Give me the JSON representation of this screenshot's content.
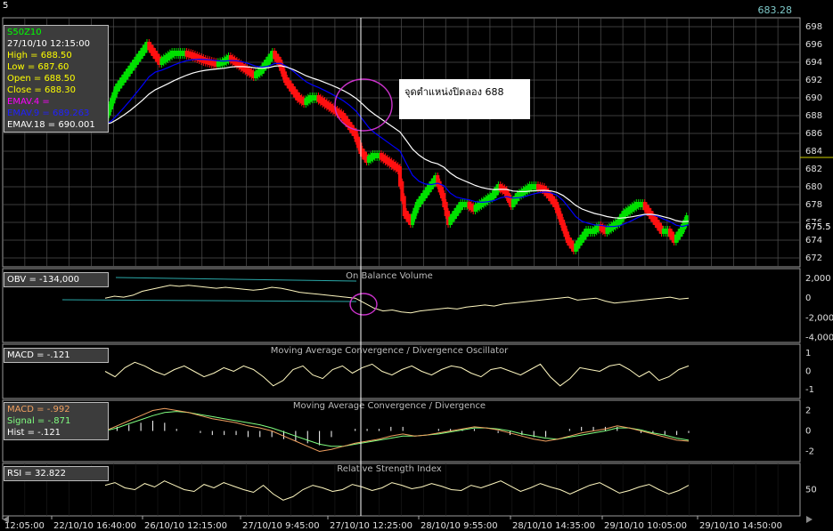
{
  "window": {
    "corner_label": "5",
    "last_price": "683.28"
  },
  "price_panel": {
    "symbol": "S50Z10",
    "datetime": "27/10/10 12:15:00",
    "high": "High  = 688.50",
    "low": "Low   = 687.60",
    "open": "Open = 688.50",
    "close": "Close = 688.30",
    "emav4": "EMAV.4 =",
    "emav9": "EMAV.9 = 689.263",
    "emav18": "EMAV.18 = 690.001",
    "y_ticks": [
      "698",
      "696",
      "694",
      "692",
      "690",
      "688",
      "686",
      "684",
      "682",
      "680",
      "678",
      "676",
      "674",
      "672"
    ],
    "last_label": "675.5",
    "annotation": "จุดตำแหน่งปิดลอง 688"
  },
  "obv_panel": {
    "title": "On Balance Volume",
    "value_label": "OBV = -134,000",
    "y_ticks": [
      "2,000",
      "0",
      "-2,000",
      "-4,000"
    ]
  },
  "osc_panel": {
    "title": "Moving Average Convergence / Divergence Oscillator",
    "value_label": "MACD = -.121",
    "y_ticks": [
      "1",
      "0",
      "-1"
    ]
  },
  "macd_panel": {
    "title": "Moving Average Convergence / Divergence",
    "macd": "MACD = -.992",
    "signal": "Signal = -.871",
    "hist": "Hist = -.121",
    "y_ticks": [
      "2",
      "0",
      "-2"
    ]
  },
  "rsi_panel": {
    "title": "Relative Strength Index",
    "value_label": "RSI = 32.822",
    "y_ticks": [
      "50"
    ]
  },
  "x_axis": {
    "labels": [
      "12:05:00",
      "22/10/10 16:40:00",
      "26/10/10 12:15:00",
      "27/10/10 9:45:00",
      "27/10/10 12:25:00",
      "28/10/10 9:55:00",
      "28/10/10 14:35:00",
      "29/10/10 10:05:00",
      "29/10/10 14:50:00"
    ]
  },
  "colors": {
    "up": "#00e000",
    "down": "#ff1010",
    "ema4": "#ff00ff",
    "ema9": "#0000ff",
    "ema18": "#ffffff",
    "osc": "#fff8c0",
    "obv": "#fff8c0",
    "grid": "#505050",
    "cursor": "#ffffff",
    "marker": "#cc33cc",
    "signal": "#f0a060",
    "macd_line": "#80ff80",
    "hist": "#ffffff"
  },
  "chart_data": [
    {
      "type": "candlestick",
      "title": "S50Z10",
      "ylim": [
        671,
        699
      ],
      "close_path": [
        687,
        689,
        691,
        692,
        693,
        694,
        695,
        696,
        695,
        694,
        694.5,
        695,
        695,
        695,
        694.8,
        694.5,
        694.2,
        694,
        693.8,
        694,
        694.5,
        694,
        693.5,
        693,
        692.5,
        693,
        694,
        695,
        694,
        692,
        691,
        690,
        689.5,
        690,
        690,
        689.5,
        689,
        688.5,
        688,
        687,
        686,
        684,
        683,
        683.5,
        683.5,
        683,
        682.5,
        682,
        677,
        676,
        678,
        679,
        680,
        681,
        679,
        676,
        677,
        678,
        678,
        677.5,
        678,
        678.5,
        679,
        680,
        679.5,
        678,
        679,
        679.5,
        680,
        680,
        679.8,
        679,
        678,
        676,
        674,
        673,
        674,
        675,
        675,
        675.5,
        675,
        675.5,
        676,
        677,
        677.5,
        678,
        678,
        677,
        676,
        675,
        675,
        674,
        675,
        676.5
      ]
    },
    {
      "type": "line",
      "title": "On Balance Volume",
      "ylim": [
        -4500,
        3000
      ],
      "values": [
        0,
        200,
        100,
        300,
        700,
        900,
        1100,
        1300,
        1200,
        1300,
        1200,
        1100,
        1000,
        1100,
        1000,
        900,
        800,
        900,
        1100,
        1000,
        800,
        600,
        500,
        400,
        300,
        200,
        100,
        0,
        -500,
        -1000,
        -1300,
        -1200,
        -1400,
        -1500,
        -1300,
        -1200,
        -1100,
        -1000,
        -1100,
        -900,
        -800,
        -700,
        -800,
        -600,
        -500,
        -400,
        -300,
        -200,
        -100,
        0,
        100,
        -200,
        -100,
        0,
        -300,
        -500,
        -400,
        -300,
        -200,
        -100,
        0,
        100,
        -100,
        0
      ]
    },
    {
      "type": "line",
      "title": "Moving Average Convergence / Divergence Oscillator",
      "ylim": [
        -1.5,
        1.5
      ],
      "values": [
        0,
        -0.3,
        0.2,
        0.5,
        0.3,
        0,
        -0.2,
        0.1,
        0.3,
        0,
        -0.3,
        -0.1,
        0.2,
        0,
        0.3,
        0.1,
        -0.3,
        -0.8,
        -0.5,
        0.1,
        0.3,
        -0.2,
        -0.4,
        0.1,
        0.3,
        -0.1,
        0.2,
        0.4,
        0,
        -0.2,
        0.1,
        0.3,
        0,
        -0.2,
        0.1,
        0.3,
        0.2,
        -0.1,
        -0.3,
        0.1,
        0.2,
        0,
        -0.2,
        0.1,
        0.4,
        -0.3,
        -0.8,
        -0.4,
        0.2,
        0.1,
        0,
        0.3,
        0.4,
        0.1,
        -0.3,
        0,
        -0.5,
        -0.3,
        0.1,
        0.3
      ]
    },
    {
      "type": "line",
      "title": "Moving Average Convergence / Divergence",
      "ylim": [
        -3,
        3
      ],
      "series": [
        {
          "name": "MACD",
          "values": [
            0,
            0.5,
            1,
            1.5,
            2,
            2.2,
            2,
            1.8,
            1.5,
            1.2,
            1,
            0.8,
            0.5,
            0.3,
            0,
            -0.5,
            -1,
            -1.5,
            -2,
            -1.8,
            -1.5,
            -1.2,
            -1,
            -0.8,
            -0.5,
            -0.3,
            -0.5,
            -0.4,
            -0.2,
            0,
            0.2,
            0.4,
            0.3,
            0.1,
            -0.2,
            -0.5,
            -0.8,
            -1,
            -0.8,
            -0.5,
            -0.2,
            0,
            0.2,
            0.5,
            0.3,
            0,
            -0.3,
            -0.6,
            -0.9,
            -1
          ]
        },
        {
          "name": "Signal",
          "values": [
            0,
            0.3,
            0.7,
            1.1,
            1.5,
            1.8,
            1.9,
            1.8,
            1.6,
            1.4,
            1.2,
            1,
            0.8,
            0.6,
            0.3,
            -0.1,
            -0.5,
            -0.9,
            -1.3,
            -1.5,
            -1.5,
            -1.3,
            -1.1,
            -0.9,
            -0.7,
            -0.5,
            -0.5,
            -0.4,
            -0.3,
            -0.1,
            0.1,
            0.3,
            0.3,
            0.2,
            0,
            -0.3,
            -0.5,
            -0.7,
            -0.8,
            -0.6,
            -0.4,
            -0.2,
            0,
            0.3,
            0.3,
            0.1,
            -0.2,
            -0.4,
            -0.7,
            -0.9
          ]
        }
      ]
    },
    {
      "type": "line",
      "title": "Relative Strength Index",
      "ylim": [
        20,
        80
      ],
      "values": [
        55,
        58,
        52,
        50,
        57,
        53,
        60,
        55,
        50,
        48,
        56,
        52,
        58,
        54,
        50,
        47,
        55,
        45,
        38,
        42,
        50,
        55,
        52,
        48,
        50,
        56,
        53,
        49,
        52,
        58,
        55,
        51,
        53,
        57,
        54,
        50,
        49,
        55,
        52,
        56,
        60,
        54,
        48,
        52,
        57,
        53,
        50,
        45,
        50,
        55,
        58,
        52,
        46,
        49,
        53,
        56,
        50,
        45,
        49,
        55
      ]
    }
  ]
}
